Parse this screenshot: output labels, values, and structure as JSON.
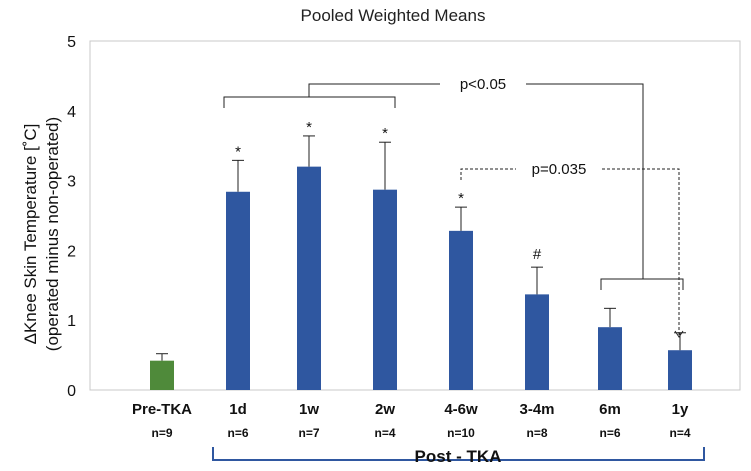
{
  "chart_data": {
    "type": "bar",
    "title": "Pooled Weighted Means",
    "ylabel_line1": "ΔKnee Skin Temperature [˚C]",
    "ylabel_line2": "(operated minus non-operated)",
    "ylim": [
      0,
      5
    ],
    "yticks": [
      "0",
      "1",
      "2",
      "3",
      "4",
      "5"
    ],
    "grid": false,
    "categories": [
      "Pre-TKA",
      "1d",
      "1w",
      "2w",
      "4-6w",
      "3-4m",
      "6m",
      "1y"
    ],
    "n_labels": [
      "n=9",
      "n=6",
      "n=7",
      "n=4",
      "n=10",
      "n=8",
      "n=6",
      "n=4"
    ],
    "values": [
      0.42,
      2.84,
      3.2,
      2.87,
      2.28,
      1.37,
      0.9,
      0.57
    ],
    "errors": [
      0.1,
      0.45,
      0.44,
      0.68,
      0.34,
      0.39,
      0.27,
      0.25
    ],
    "markers": [
      "",
      "*",
      "*",
      "*",
      "*",
      "#",
      "",
      ""
    ],
    "colors": [
      "#4f8a3a",
      "#2f57a0",
      "#2f57a0",
      "#2f57a0",
      "#2f57a0",
      "#2f57a0",
      "#2f57a0",
      "#2f57a0"
    ],
    "group_label": "Post - TKA",
    "annotations": [
      {
        "text": "p<0.05",
        "style": "solid"
      },
      {
        "text": "p=0.035",
        "style": "dashed"
      }
    ]
  }
}
